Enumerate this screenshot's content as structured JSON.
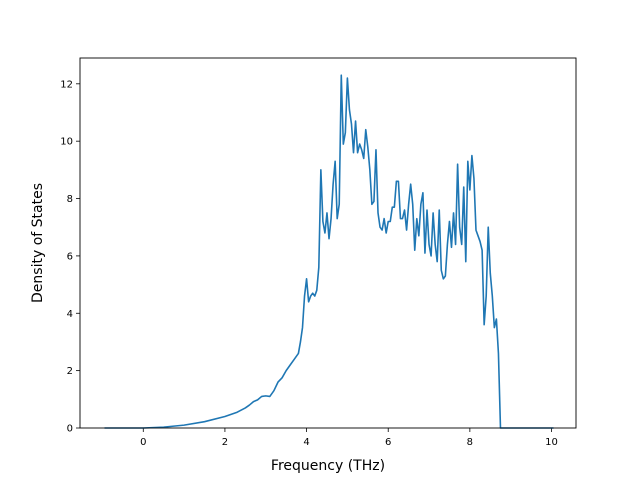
{
  "chart_data": {
    "type": "line",
    "title": "",
    "xlabel": "Frequency (THz)",
    "ylabel": "Density of States",
    "xlim": [
      -1.55,
      10.6
    ],
    "ylim": [
      0,
      12.9
    ],
    "xticks": [
      0,
      2,
      4,
      6,
      8,
      10
    ],
    "yticks": [
      0,
      2,
      4,
      6,
      8,
      10,
      12
    ],
    "grid": false,
    "legend": "none",
    "line_color": "#1f77b4",
    "series": [
      {
        "x": [
          -0.95,
          0.0,
          0.5,
          1.0,
          1.5,
          2.0,
          2.3,
          2.5,
          2.6,
          2.7,
          2.8,
          2.9,
          3.0,
          3.1,
          3.2,
          3.3,
          3.4,
          3.5,
          3.6,
          3.7,
          3.8,
          3.85,
          3.9,
          3.95,
          4.0,
          4.05,
          4.1,
          4.15,
          4.2,
          4.25,
          4.3,
          4.35,
          4.4,
          4.45,
          4.5,
          4.55,
          4.6,
          4.65,
          4.7,
          4.75,
          4.8,
          4.85,
          4.9,
          4.95,
          5.0,
          5.05,
          5.1,
          5.15,
          5.2,
          5.25,
          5.3,
          5.35,
          5.4,
          5.45,
          5.5,
          5.55,
          5.6,
          5.65,
          5.7,
          5.75,
          5.8,
          5.85,
          5.9,
          5.95,
          6.0,
          6.05,
          6.1,
          6.15,
          6.2,
          6.25,
          6.3,
          6.35,
          6.4,
          6.45,
          6.5,
          6.55,
          6.6,
          6.65,
          6.7,
          6.75,
          6.8,
          6.85,
          6.9,
          6.95,
          7.0,
          7.05,
          7.1,
          7.15,
          7.2,
          7.25,
          7.3,
          7.35,
          7.4,
          7.45,
          7.5,
          7.55,
          7.6,
          7.65,
          7.7,
          7.75,
          7.8,
          7.85,
          7.9,
          7.95,
          8.0,
          8.05,
          8.1,
          8.15,
          8.2,
          8.25,
          8.3,
          8.35,
          8.4,
          8.45,
          8.5,
          8.55,
          8.6,
          8.65,
          8.7,
          8.75,
          8.8,
          8.85,
          8.9,
          8.95,
          9.0,
          9.05,
          9.1,
          9.15,
          9.2,
          9.5,
          10.05
        ],
        "y": [
          0.0,
          0.0,
          0.03,
          0.1,
          0.22,
          0.4,
          0.55,
          0.7,
          0.8,
          0.92,
          0.98,
          1.1,
          1.12,
          1.1,
          1.3,
          1.6,
          1.75,
          2.0,
          2.2,
          2.4,
          2.6,
          3.0,
          3.5,
          4.6,
          5.2,
          4.4,
          4.6,
          4.7,
          4.6,
          4.8,
          5.6,
          9.0,
          7.2,
          6.8,
          7.5,
          6.6,
          7.3,
          8.5,
          9.3,
          7.3,
          7.8,
          12.3,
          9.9,
          10.3,
          12.2,
          11.1,
          10.6,
          9.6,
          10.7,
          9.6,
          9.9,
          9.7,
          9.4,
          10.4,
          9.8,
          9.0,
          7.8,
          7.9,
          9.7,
          7.5,
          7.0,
          6.9,
          7.3,
          6.8,
          7.2,
          7.2,
          7.7,
          7.7,
          8.6,
          8.6,
          7.3,
          7.3,
          7.6,
          6.9,
          7.8,
          8.5,
          7.8,
          6.2,
          7.3,
          6.7,
          7.8,
          8.2,
          6.1,
          7.6,
          6.4,
          6.0,
          7.5,
          6.4,
          5.8,
          7.6,
          5.5,
          5.2,
          5.3,
          6.4,
          7.2,
          6.3,
          7.5,
          6.4,
          9.2,
          7.0,
          6.4,
          8.4,
          5.8,
          9.3,
          8.3,
          9.5,
          8.7,
          6.9,
          6.7,
          6.5,
          6.2,
          3.6,
          4.6,
          7.0,
          5.4,
          4.6,
          3.5,
          3.8,
          2.6,
          0.0,
          0.0,
          0.0,
          0.0,
          0.0,
          0.0,
          0.0,
          0.0,
          0.0,
          0.0,
          0.0,
          0.0
        ]
      }
    ]
  }
}
